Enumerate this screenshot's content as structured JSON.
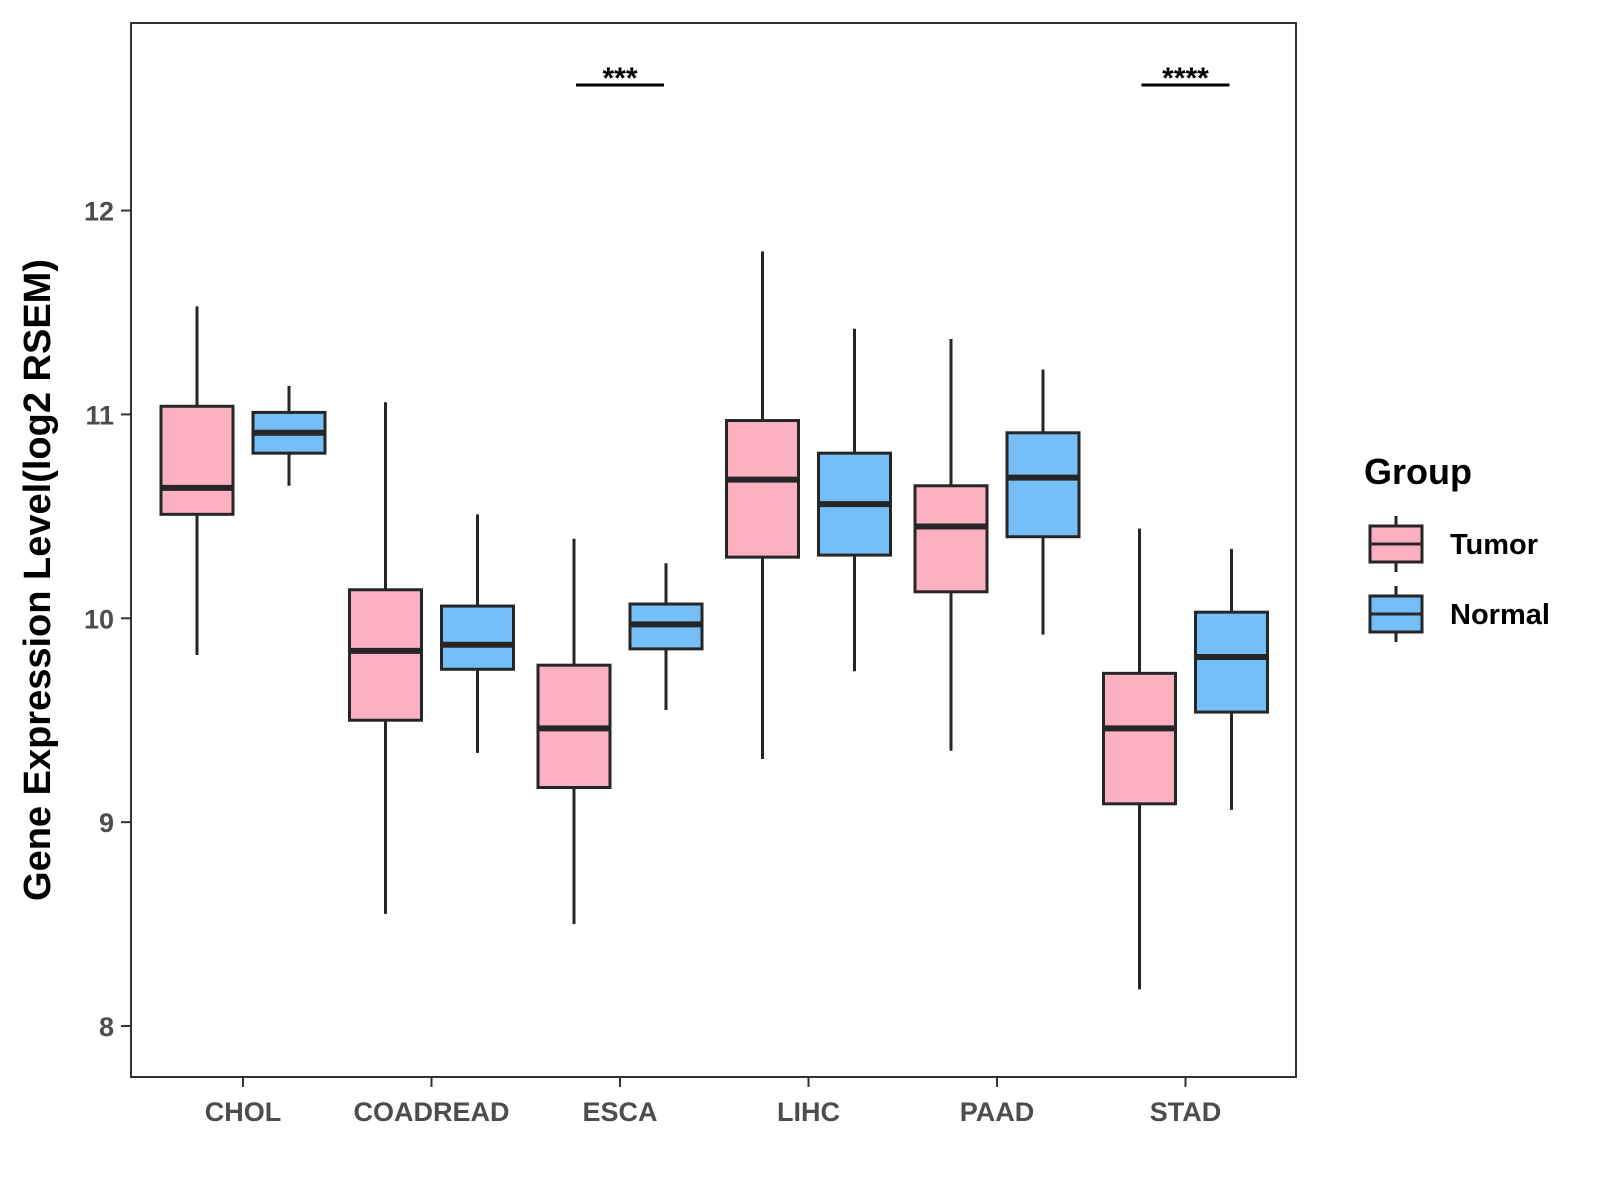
{
  "chart_data": {
    "type": "boxplot",
    "title": "",
    "xlabel": "",
    "ylabel": "Gene Expression Level(log2 RSEM)",
    "ylim": [
      7.75,
      12.92
    ],
    "yticks": [
      8,
      9,
      10,
      11,
      12
    ],
    "ytick_labels": [
      "8",
      "9",
      "10",
      "11",
      "12"
    ],
    "categories": [
      "CHOL",
      "COADREAD",
      "ESCA",
      "LIHC",
      "PAAD",
      "STAD"
    ],
    "legend": {
      "title": "Group",
      "position": "right",
      "entries": [
        "Tumor",
        "Normal"
      ]
    },
    "series": [
      {
        "name": "Tumor",
        "color": "#FCB1C3",
        "boxes": [
          {
            "whisker_low": 9.82,
            "q1": 10.51,
            "median": 10.64,
            "q3": 11.04,
            "whisker_high": 11.53
          },
          {
            "whisker_low": 8.55,
            "q1": 9.5,
            "median": 9.84,
            "q3": 10.14,
            "whisker_high": 11.06
          },
          {
            "whisker_low": 8.5,
            "q1": 9.17,
            "median": 9.46,
            "q3": 9.77,
            "whisker_high": 10.39
          },
          {
            "whisker_low": 9.31,
            "q1": 10.3,
            "median": 10.68,
            "q3": 10.97,
            "whisker_high": 11.8
          },
          {
            "whisker_low": 9.35,
            "q1": 10.13,
            "median": 10.45,
            "q3": 10.65,
            "whisker_high": 11.37
          },
          {
            "whisker_low": 8.18,
            "q1": 9.09,
            "median": 9.46,
            "q3": 9.73,
            "whisker_high": 10.44
          }
        ]
      },
      {
        "name": "Normal",
        "color": "#75BFF8",
        "boxes": [
          {
            "whisker_low": 10.65,
            "q1": 10.81,
            "median": 10.91,
            "q3": 11.01,
            "whisker_high": 11.14
          },
          {
            "whisker_low": 9.34,
            "q1": 9.75,
            "median": 9.87,
            "q3": 10.06,
            "whisker_high": 10.51
          },
          {
            "whisker_low": 9.55,
            "q1": 9.85,
            "median": 9.97,
            "q3": 10.07,
            "whisker_high": 10.27
          },
          {
            "whisker_low": 9.74,
            "q1": 10.31,
            "median": 10.56,
            "q3": 10.81,
            "whisker_high": 11.42
          },
          {
            "whisker_low": 9.92,
            "q1": 10.4,
            "median": 10.69,
            "q3": 10.91,
            "whisker_high": 11.22
          },
          {
            "whisker_low": 9.06,
            "q1": 9.54,
            "median": 9.81,
            "q3": 10.03,
            "whisker_high": 10.34
          }
        ]
      }
    ],
    "annotations": [
      {
        "category": "ESCA",
        "text": "***",
        "y": 12.66
      },
      {
        "category": "STAD",
        "text": "****",
        "y": 12.66
      }
    ]
  }
}
